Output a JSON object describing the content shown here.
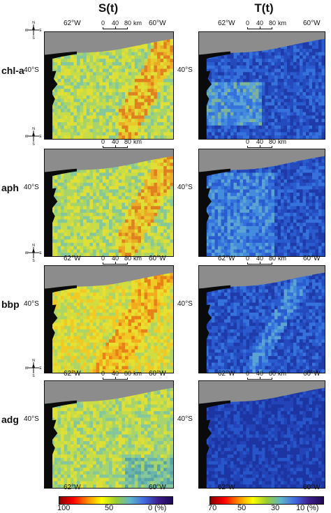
{
  "columns": {
    "left_title": "S(t)",
    "right_title": "T(t)"
  },
  "rows": [
    {
      "label": "chl-a",
      "lat": "40°S"
    },
    {
      "label": "aph",
      "lat": "40°S"
    },
    {
      "label": "bbp",
      "lat": "40°S"
    },
    {
      "label": "adg",
      "lat": "40°S"
    }
  ],
  "longitudes": {
    "west": "62°W",
    "east": "60°W"
  },
  "scale_bar": {
    "t0": "0",
    "t1": "40",
    "t2": "80",
    "unit": "km"
  },
  "compass": {
    "n": "N",
    "s": "S",
    "e": "E",
    "w": "W"
  },
  "colorbars": {
    "left": {
      "labels": [
        "100",
        "50",
        "0 (%)"
      ],
      "colors": [
        "#8b0000",
        "#ff0000",
        "#ff8c00",
        "#ffff00",
        "#9acd32",
        "#5fb6c9",
        "#4169e1",
        "#3c1e8c",
        "#1e0a50"
      ]
    },
    "right": {
      "labels": [
        "70",
        "50",
        "30",
        "10 (%)"
      ],
      "colors": [
        "#8b0000",
        "#ff0000",
        "#ff8c00",
        "#ffff00",
        "#9acd32",
        "#5fb6c9",
        "#4169e1",
        "#3c1e8c",
        "#1e0a50"
      ]
    }
  },
  "palette": {
    "land": "#8c8c8c",
    "coast": "#0a0a0a"
  }
}
